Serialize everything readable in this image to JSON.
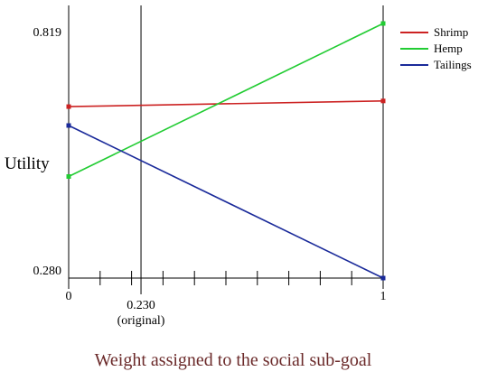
{
  "chart_data": {
    "type": "line",
    "title": "",
    "xlabel": "Weight assigned to the social sub-goal",
    "ylabel": "Utility",
    "x": [
      0,
      1
    ],
    "xlim": [
      0,
      1
    ],
    "ylim": [
      0.28,
      0.819
    ],
    "y_tick_labels": [
      "0.280",
      "0.819"
    ],
    "x_tick_labels": [
      "0",
      "1"
    ],
    "x_minor_ticks": [
      0.1,
      0.2,
      0.3,
      0.4,
      0.5,
      0.6,
      0.7,
      0.8,
      0.9
    ],
    "reference_line": {
      "x": 0.23,
      "label": "0.230",
      "sublabel": "(original)"
    },
    "legend_position": "top-right",
    "grid": false,
    "series": [
      {
        "name": "Shrimp",
        "color": "#cc2222",
        "values": [
          0.643,
          0.655
        ]
      },
      {
        "name": "Hemp",
        "color": "#22cc33",
        "values": [
          0.495,
          0.819
        ]
      },
      {
        "name": "Tailings",
        "color": "#1a2a9a",
        "values": [
          0.603,
          0.28
        ]
      }
    ]
  }
}
